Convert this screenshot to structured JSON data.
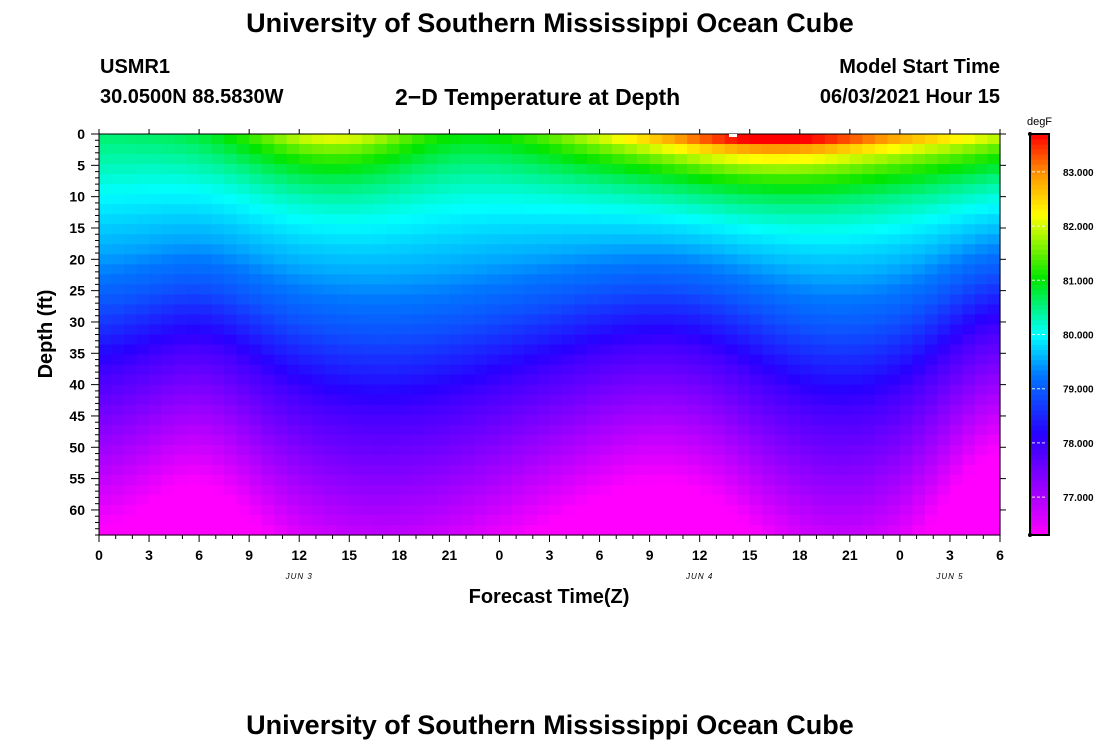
{
  "header": {
    "title_top": "University of Southern Mississippi Ocean Cube",
    "title_bottom": "University of Southern Mississippi Ocean Cube",
    "station": "USMR1",
    "coords": "30.0500N  88.5830W",
    "plot_title": "2−D Temperature at Depth",
    "start_label": "Model Start Time",
    "start_value": "06/03/2021 Hour 15"
  },
  "chart_data": {
    "type": "heatmap",
    "title": "2−D Temperature at Depth",
    "xlabel": "Forecast Time(Z)",
    "ylabel": "Depth (ft)",
    "units": "degF",
    "x_ticks": [
      "0",
      "3",
      "6",
      "9",
      "12",
      "15",
      "18",
      "21",
      "0",
      "3",
      "6",
      "9",
      "12",
      "15",
      "18",
      "21",
      "0",
      "3",
      "6"
    ],
    "x_range_hours": [
      0,
      54
    ],
    "date_labels": [
      {
        "label": "JUN 3",
        "hour": 12
      },
      {
        "label": "JUN 4",
        "hour": 36
      },
      {
        "label": "JUN 5",
        "hour": 51
      }
    ],
    "y_ticks": [
      "0",
      "5",
      "10",
      "15",
      "20",
      "25",
      "30",
      "35",
      "40",
      "45",
      "50",
      "55",
      "60"
    ],
    "y_range_ft": [
      0,
      64
    ],
    "color_range": [
      76.3,
      83.7
    ],
    "colorbar_ticks": [
      "83.000",
      "82.000",
      "81.000",
      "80.000",
      "79.000",
      "78.000",
      "77.000"
    ],
    "temperature_profile_at_hour0": [
      {
        "depth": 0,
        "temp": 80.6
      },
      {
        "depth": 10,
        "temp": 80.4
      },
      {
        "depth": 20,
        "temp": 80.0
      },
      {
        "depth": 28,
        "temp": 79.0
      },
      {
        "depth": 38,
        "temp": 78.0
      },
      {
        "depth": 50,
        "temp": 77.0
      },
      {
        "depth": 64,
        "temp": 76.4
      }
    ],
    "surface_max": {
      "hour": 14,
      "depth": 0,
      "temp": 83.7
    }
  }
}
